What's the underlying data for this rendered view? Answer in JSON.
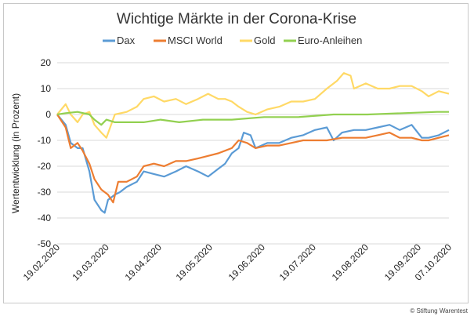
{
  "chart_data": {
    "type": "line",
    "title": "Wichtige Märkte in der Corona-Krise",
    "xlabel": "",
    "ylabel": "Wertentwicklung (in Prozent)",
    "ylim": [
      -50,
      20
    ],
    "yticks": [
      20,
      10,
      0,
      -10,
      -20,
      -30,
      -40,
      -50
    ],
    "xlim": [
      "2020-02-19",
      "2020-10-07"
    ],
    "xtick_labels": [
      "19.02.2020",
      "19.03.2020",
      "19.04.2020",
      "19.05.2020",
      "19.06.2020",
      "19.07.2020",
      "19.08.2020",
      "19.09.2020",
      "07.10.2020"
    ],
    "xtick_dates": [
      "2020-02-19",
      "2020-03-19",
      "2020-04-19",
      "2020-05-19",
      "2020-06-19",
      "2020-07-19",
      "2020-08-19",
      "2020-09-19",
      "2020-10-07"
    ],
    "grid": "horizontal",
    "legend_position": "top",
    "series": [
      {
        "name": "Dax",
        "color": "#5b9bd5",
        "points": [
          [
            "2020-02-19",
            0
          ],
          [
            "2020-02-24",
            -4
          ],
          [
            "2020-02-27",
            -11
          ],
          [
            "2020-03-02",
            -13
          ],
          [
            "2020-03-05",
            -13
          ],
          [
            "2020-03-09",
            -22
          ],
          [
            "2020-03-12",
            -33
          ],
          [
            "2020-03-16",
            -37
          ],
          [
            "2020-03-18",
            -38
          ],
          [
            "2020-03-20",
            -33
          ],
          [
            "2020-03-24",
            -31
          ],
          [
            "2020-03-27",
            -30
          ],
          [
            "2020-03-31",
            -28
          ],
          [
            "2020-04-06",
            -26
          ],
          [
            "2020-04-10",
            -22
          ],
          [
            "2020-04-16",
            -23
          ],
          [
            "2020-04-22",
            -24
          ],
          [
            "2020-04-29",
            -22
          ],
          [
            "2020-05-05",
            -20
          ],
          [
            "2020-05-12",
            -22
          ],
          [
            "2020-05-18",
            -24
          ],
          [
            "2020-05-24",
            -21
          ],
          [
            "2020-05-28",
            -19
          ],
          [
            "2020-06-01",
            -15
          ],
          [
            "2020-06-05",
            -13
          ],
          [
            "2020-06-08",
            -7
          ],
          [
            "2020-06-12",
            -8
          ],
          [
            "2020-06-15",
            -13
          ],
          [
            "2020-06-22",
            -11
          ],
          [
            "2020-06-29",
            -11
          ],
          [
            "2020-07-06",
            -9
          ],
          [
            "2020-07-13",
            -8
          ],
          [
            "2020-07-20",
            -6
          ],
          [
            "2020-07-27",
            -5
          ],
          [
            "2020-07-31",
            -10
          ],
          [
            "2020-08-05",
            -7
          ],
          [
            "2020-08-12",
            -6
          ],
          [
            "2020-08-19",
            -6
          ],
          [
            "2020-08-26",
            -5
          ],
          [
            "2020-09-02",
            -4
          ],
          [
            "2020-09-08",
            -6
          ],
          [
            "2020-09-15",
            -4
          ],
          [
            "2020-09-21",
            -9
          ],
          [
            "2020-09-25",
            -9
          ],
          [
            "2020-10-01",
            -8
          ],
          [
            "2020-10-07",
            -6
          ]
        ]
      },
      {
        "name": "MSCI World",
        "color": "#ed7d31",
        "points": [
          [
            "2020-02-19",
            0
          ],
          [
            "2020-02-24",
            -5
          ],
          [
            "2020-02-27",
            -13
          ],
          [
            "2020-03-02",
            -11
          ],
          [
            "2020-03-05",
            -14
          ],
          [
            "2020-03-09",
            -19
          ],
          [
            "2020-03-12",
            -25
          ],
          [
            "2020-03-16",
            -29
          ],
          [
            "2020-03-18",
            -30
          ],
          [
            "2020-03-20",
            -31
          ],
          [
            "2020-03-23",
            -34
          ],
          [
            "2020-03-26",
            -26
          ],
          [
            "2020-03-31",
            -26
          ],
          [
            "2020-04-06",
            -24
          ],
          [
            "2020-04-10",
            -20
          ],
          [
            "2020-04-16",
            -19
          ],
          [
            "2020-04-22",
            -20
          ],
          [
            "2020-04-29",
            -18
          ],
          [
            "2020-05-05",
            -18
          ],
          [
            "2020-05-12",
            -17
          ],
          [
            "2020-05-18",
            -16
          ],
          [
            "2020-05-24",
            -15
          ],
          [
            "2020-05-28",
            -14
          ],
          [
            "2020-06-01",
            -13
          ],
          [
            "2020-06-05",
            -10
          ],
          [
            "2020-06-10",
            -11
          ],
          [
            "2020-06-15",
            -13
          ],
          [
            "2020-06-22",
            -12
          ],
          [
            "2020-06-29",
            -12
          ],
          [
            "2020-07-06",
            -11
          ],
          [
            "2020-07-13",
            -10
          ],
          [
            "2020-07-20",
            -10
          ],
          [
            "2020-07-27",
            -10
          ],
          [
            "2020-08-05",
            -9
          ],
          [
            "2020-08-12",
            -9
          ],
          [
            "2020-08-19",
            -9
          ],
          [
            "2020-08-26",
            -8
          ],
          [
            "2020-09-02",
            -7
          ],
          [
            "2020-09-08",
            -9
          ],
          [
            "2020-09-15",
            -9
          ],
          [
            "2020-09-21",
            -10
          ],
          [
            "2020-09-25",
            -10
          ],
          [
            "2020-10-01",
            -9
          ],
          [
            "2020-10-07",
            -8
          ]
        ]
      },
      {
        "name": "Gold",
        "color": "#ffd966",
        "points": [
          [
            "2020-02-19",
            0
          ],
          [
            "2020-02-24",
            4
          ],
          [
            "2020-02-27",
            0
          ],
          [
            "2020-03-02",
            -3
          ],
          [
            "2020-03-05",
            0
          ],
          [
            "2020-03-09",
            1
          ],
          [
            "2020-03-12",
            -4
          ],
          [
            "2020-03-16",
            -7
          ],
          [
            "2020-03-19",
            -9
          ],
          [
            "2020-03-24",
            0
          ],
          [
            "2020-03-31",
            1
          ],
          [
            "2020-04-06",
            3
          ],
          [
            "2020-04-10",
            6
          ],
          [
            "2020-04-16",
            7
          ],
          [
            "2020-04-22",
            5
          ],
          [
            "2020-04-29",
            6
          ],
          [
            "2020-05-05",
            4
          ],
          [
            "2020-05-12",
            6
          ],
          [
            "2020-05-18",
            8
          ],
          [
            "2020-05-24",
            6
          ],
          [
            "2020-05-28",
            6
          ],
          [
            "2020-06-01",
            5
          ],
          [
            "2020-06-05",
            3
          ],
          [
            "2020-06-10",
            1
          ],
          [
            "2020-06-15",
            0
          ],
          [
            "2020-06-22",
            2
          ],
          [
            "2020-06-29",
            3
          ],
          [
            "2020-07-06",
            5
          ],
          [
            "2020-07-13",
            5
          ],
          [
            "2020-07-20",
            6
          ],
          [
            "2020-07-27",
            10
          ],
          [
            "2020-08-02",
            13
          ],
          [
            "2020-08-06",
            16
          ],
          [
            "2020-08-10",
            15
          ],
          [
            "2020-08-12",
            10
          ],
          [
            "2020-08-19",
            12
          ],
          [
            "2020-08-26",
            10
          ],
          [
            "2020-09-02",
            10
          ],
          [
            "2020-09-08",
            11
          ],
          [
            "2020-09-15",
            11
          ],
          [
            "2020-09-21",
            9
          ],
          [
            "2020-09-25",
            7
          ],
          [
            "2020-10-01",
            9
          ],
          [
            "2020-10-07",
            8
          ]
        ]
      },
      {
        "name": "Euro-Anleihen",
        "color": "#92d050",
        "points": [
          [
            "2020-02-19",
            0
          ],
          [
            "2020-02-24",
            0.5
          ],
          [
            "2020-03-02",
            1
          ],
          [
            "2020-03-09",
            0
          ],
          [
            "2020-03-12",
            -2
          ],
          [
            "2020-03-16",
            -4
          ],
          [
            "2020-03-19",
            -2
          ],
          [
            "2020-03-24",
            -3
          ],
          [
            "2020-03-31",
            -3
          ],
          [
            "2020-04-10",
            -3
          ],
          [
            "2020-04-20",
            -2
          ],
          [
            "2020-05-01",
            -3
          ],
          [
            "2020-05-15",
            -2
          ],
          [
            "2020-06-01",
            -2
          ],
          [
            "2020-06-20",
            -1
          ],
          [
            "2020-07-10",
            -1
          ],
          [
            "2020-07-31",
            0
          ],
          [
            "2020-08-20",
            0
          ],
          [
            "2020-09-10",
            0.5
          ],
          [
            "2020-09-30",
            1
          ],
          [
            "2020-10-07",
            1
          ]
        ]
      }
    ]
  },
  "credit": "© Stiftung Warentest"
}
